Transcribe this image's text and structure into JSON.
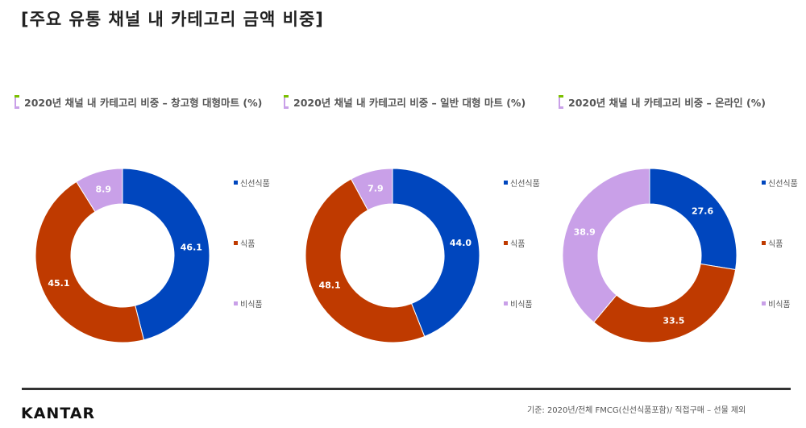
{
  "title": "[주요 유통 채널 내 카테고리 금액 비중]",
  "colors": {
    "fresh": "#0046BE",
    "food": "#BF3A00",
    "nonfood": "#C9A0E8"
  },
  "chart_data": [
    {
      "type": "pie",
      "title": "2020년 채널 내 카테고리 비중 – 창고형 대형마트 (%)",
      "categories": [
        "신선식품",
        "식품",
        "비식품"
      ],
      "values": [
        46.1,
        45.1,
        8.9
      ]
    },
    {
      "type": "pie",
      "title": "2020년 채널 내 카테고리 비중 – 일반 대형 마트 (%)",
      "categories": [
        "신선식품",
        "식품",
        "비식품"
      ],
      "values": [
        44.0,
        48.1,
        7.9
      ]
    },
    {
      "type": "pie",
      "title": "2020년 채널 내 카테고리 비중 – 온라인 (%)",
      "categories": [
        "신선식품",
        "식품",
        "비식품"
      ],
      "values": [
        27.6,
        33.5,
        38.9
      ]
    }
  ],
  "footer": {
    "logo": "KANTAR",
    "note": "기준: 2020년/전체 FMCG(신선식품포함)/ 직접구매 – 선물 제외"
  }
}
